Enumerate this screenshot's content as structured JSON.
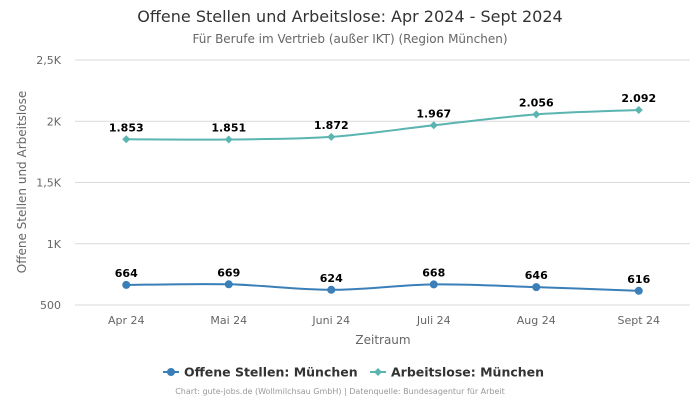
{
  "chart_data": {
    "type": "line",
    "title": "Offene Stellen und Arbeitslose: Apr 2024 - Sept 2024",
    "subtitle": "Für Berufe im Vertrieb (außer IKT) (Region München)",
    "xlabel": "Zeitraum",
    "ylabel": "Offene Stellen und Arbeitslose",
    "categories": [
      "Apr 24",
      "Mai 24",
      "Juni 24",
      "Juli 24",
      "Aug 24",
      "Sept 24"
    ],
    "ylim": [
      500,
      2500
    ],
    "yticks": [
      {
        "value": 500,
        "label": "500"
      },
      {
        "value": 1000,
        "label": "1K"
      },
      {
        "value": 1500,
        "label": "1,5K"
      },
      {
        "value": 2000,
        "label": "2K"
      },
      {
        "value": 2500,
        "label": "2,5K"
      }
    ],
    "grid": true,
    "legend_position": "bottom",
    "series": [
      {
        "name": "Offene Stellen: München",
        "color": "#3a7fb8",
        "marker": "circle",
        "values": [
          664,
          669,
          624,
          668,
          646,
          616
        ],
        "labels": [
          "664",
          "669",
          "624",
          "668",
          "646",
          "616"
        ]
      },
      {
        "name": "Arbeitslose: München",
        "color": "#5ab4b0",
        "marker": "diamond",
        "values": [
          1853,
          1851,
          1872,
          1967,
          2056,
          2092
        ],
        "labels": [
          "1.853",
          "1.851",
          "1.872",
          "1.967",
          "2.056",
          "2.092"
        ]
      }
    ],
    "credits": "Chart: gute-jobs.de (Wollmilchsau GmbH) | Datenquelle: Bundesagentur für Arbeit"
  }
}
